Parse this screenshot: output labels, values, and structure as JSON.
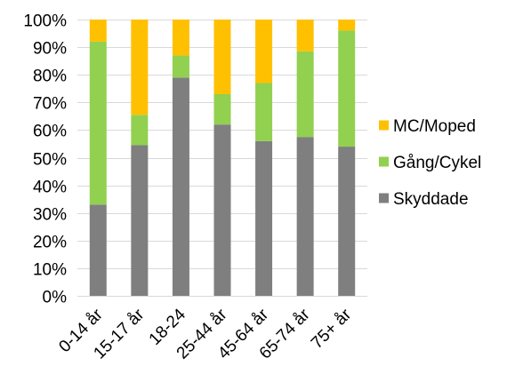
{
  "chart_data": {
    "type": "bar",
    "stacked": true,
    "percent_stacked": true,
    "categories": [
      "0-14 år",
      "15-17 år",
      "18-24",
      "25-44 år",
      "45-64 år",
      "65-74 år",
      "75+ år"
    ],
    "series": [
      {
        "name": "Skyddade",
        "color": "#7f7f7f",
        "values": [
          33,
          54.5,
          79,
          62,
          56,
          57.5,
          54
        ]
      },
      {
        "name": "Gång/Cykel",
        "color": "#92d050",
        "values": [
          59,
          11,
          8,
          11,
          21,
          31,
          42
        ]
      },
      {
        "name": "MC/Moped",
        "color": "#ffc000",
        "values": [
          8,
          34.5,
          13,
          27,
          23,
          11.5,
          4
        ]
      }
    ],
    "ylim": [
      0,
      100
    ],
    "yticks": [
      "0%",
      "10%",
      "20%",
      "30%",
      "40%",
      "50%",
      "60%",
      "70%",
      "80%",
      "90%",
      "100%"
    ],
    "grid": true,
    "legend": {
      "position": "right",
      "entries": [
        "MC/Moped",
        "Gång/Cykel",
        "Skyddade"
      ]
    }
  }
}
